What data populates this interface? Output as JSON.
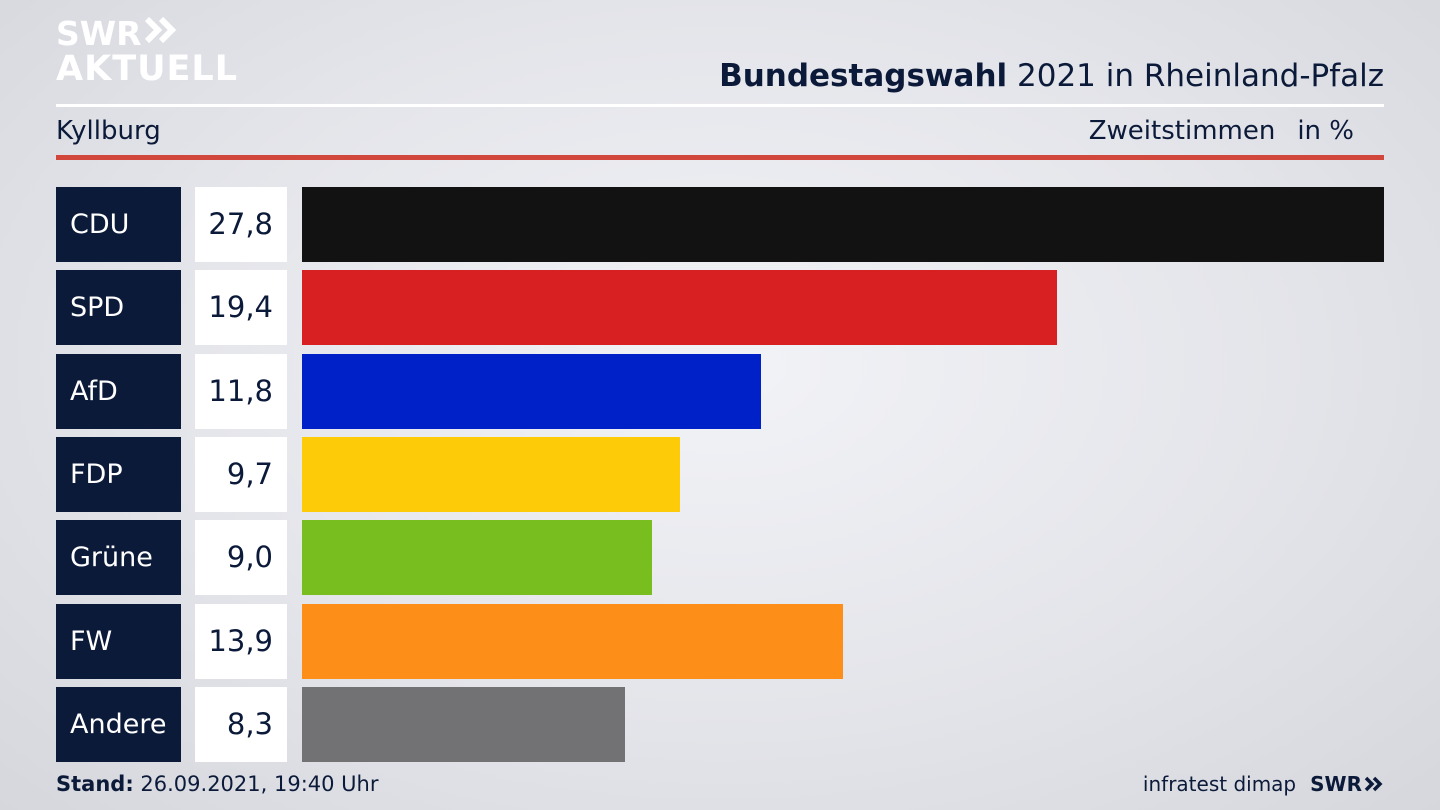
{
  "logo": {
    "line1": "SWR",
    "line1_icon": "double-chevron-icon",
    "line2": "AKTUELL"
  },
  "header": {
    "title_bold": "Bundestagswahl",
    "title_rest": " 2021 in Rheinland-Pfalz",
    "subtitle": "Kyllburg",
    "measure": "Zweitstimmen",
    "unit": "in %"
  },
  "chart_data": {
    "type": "bar",
    "orientation": "horizontal",
    "title": "Bundestagswahl 2021 in Rheinland-Pfalz",
    "subtitle": "Kyllburg",
    "ylabel": "Zweitstimmen in %",
    "categories": [
      "CDU",
      "SPD",
      "AfD",
      "FDP",
      "Grüne",
      "FW",
      "Andere"
    ],
    "values": [
      27.8,
      19.4,
      11.8,
      9.7,
      9.0,
      13.9,
      8.3
    ],
    "value_labels": [
      "27,8",
      "19,4",
      "11,8",
      "9,7",
      "9,0",
      "13,9",
      "8,3"
    ],
    "colors": [
      "#121212",
      "#d81f21",
      "#0021c8",
      "#fecb09",
      "#78be1f",
      "#fd8e18",
      "#727274"
    ],
    "xlim": [
      0,
      27.8
    ],
    "grid": false,
    "legend": "none"
  },
  "footer": {
    "stand_label": "Stand:",
    "stand_value": " 26.09.2021, 19:40 Uhr",
    "source": "infratest dimap",
    "brand": "SWR",
    "brand_icon": "double-chevron-icon"
  }
}
